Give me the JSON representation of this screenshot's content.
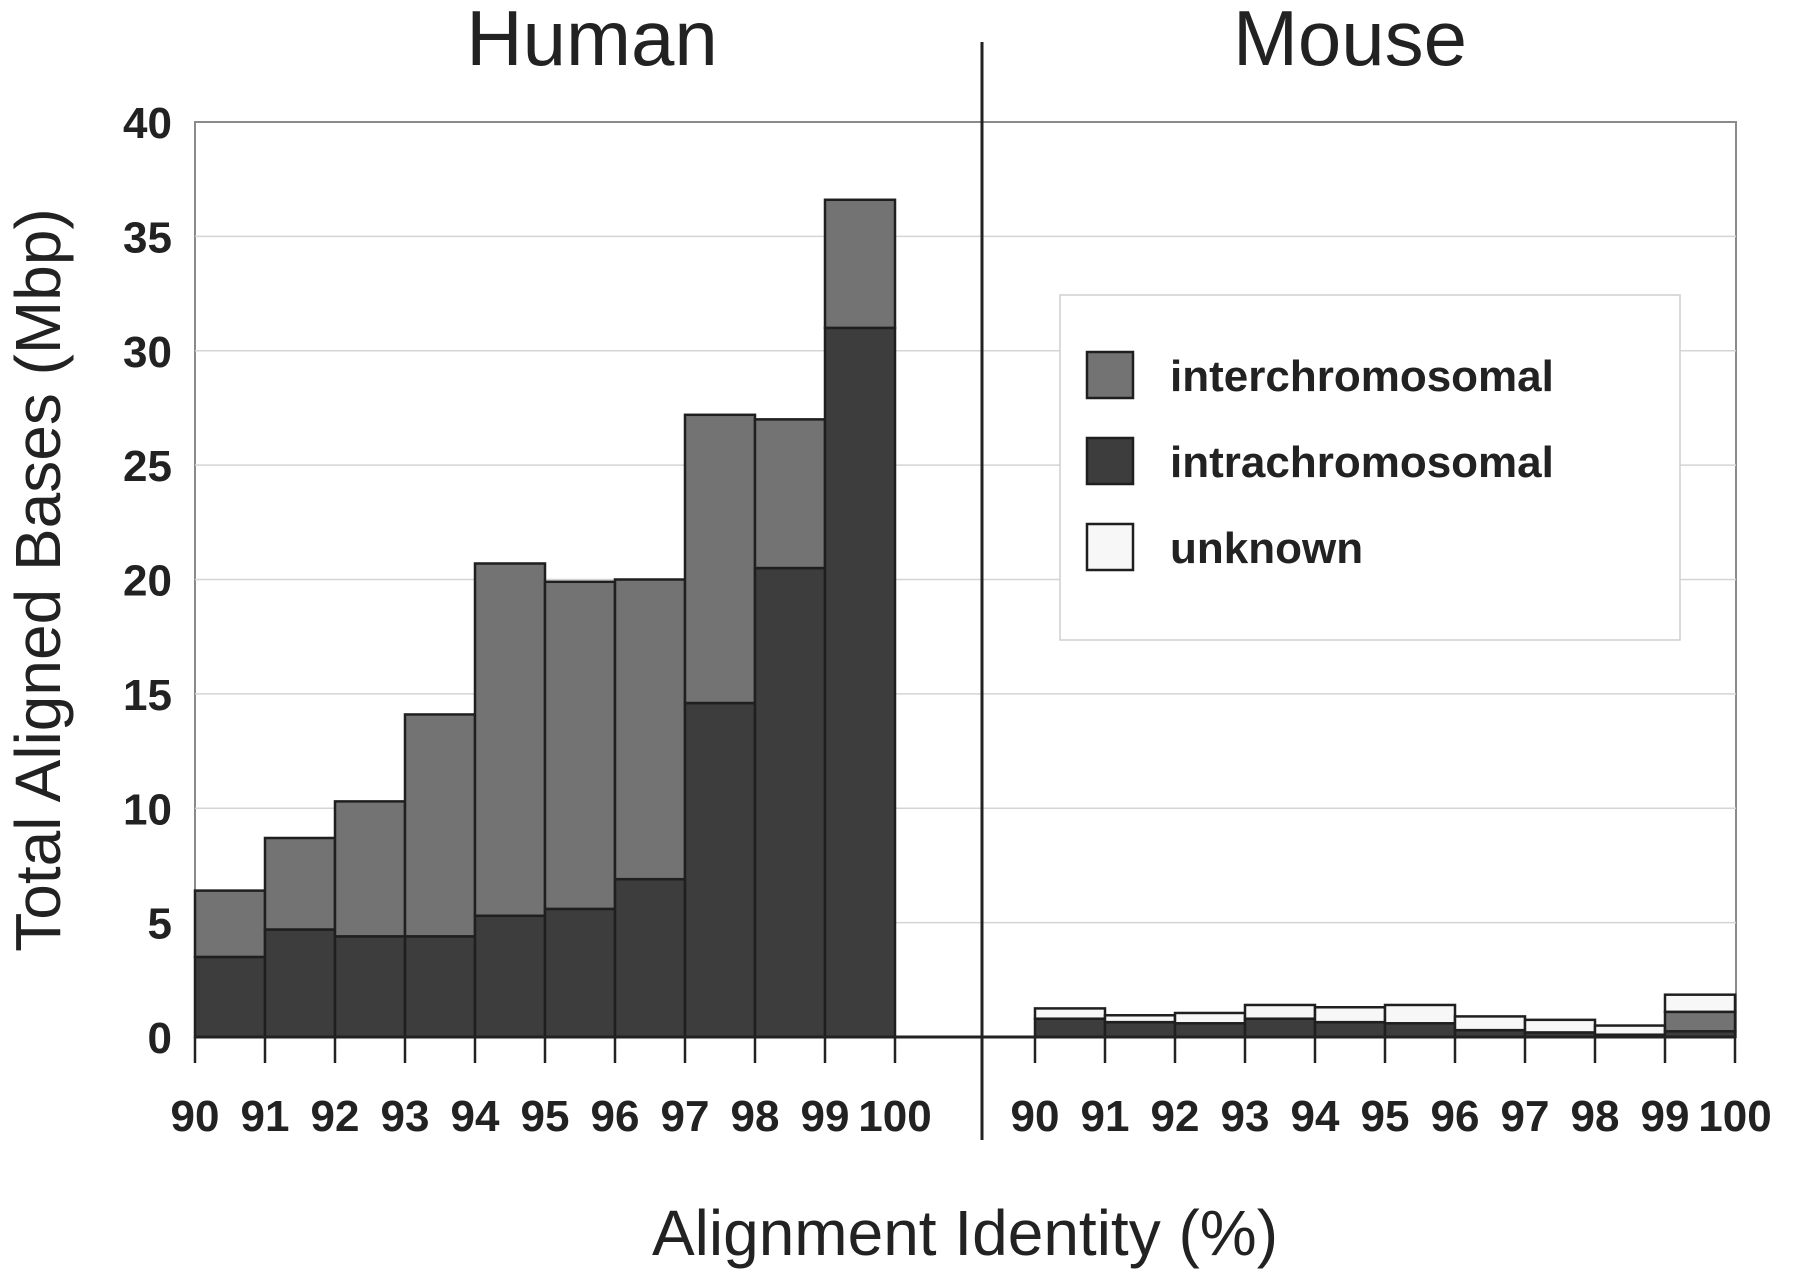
{
  "chart_data": {
    "type": "bar",
    "stacked": true,
    "ylabel": "Total Aligned Bases (Mbp)",
    "xlabel": "Alignment Identity (%)",
    "ylim": [
      0,
      40
    ],
    "y_ticks": [
      "0",
      "5",
      "10",
      "15",
      "20",
      "25",
      "30",
      "35",
      "40"
    ],
    "grid": "horizontal",
    "legend_placement": "right panel, upper middle",
    "series_colors": {
      "intrachromosomal": "#3d3d3d",
      "interchromosomal": "#737373",
      "unknown": "#f7f7f7"
    },
    "legend": [
      "interchromosomal",
      "intrachromosomal",
      "unknown"
    ],
    "panels": [
      {
        "title": "Human",
        "x_ticks": [
          "90",
          "91",
          "92",
          "93",
          "94",
          "95",
          "96",
          "97",
          "98",
          "99",
          "100"
        ],
        "bins": [
          "90-91",
          "91-92",
          "92-93",
          "93-94",
          "94-95",
          "95-96",
          "96-97",
          "97-98",
          "98-99",
          "99-100"
        ],
        "series": [
          {
            "name": "intrachromosomal",
            "values": [
              3.5,
              4.7,
              4.4,
              4.4,
              5.3,
              5.6,
              6.9,
              14.6,
              20.5,
              31.0
            ]
          },
          {
            "name": "interchromosomal",
            "values": [
              2.9,
              4.0,
              5.9,
              9.7,
              15.4,
              14.3,
              13.1,
              12.6,
              6.5,
              5.6
            ]
          },
          {
            "name": "unknown",
            "values": [
              0,
              0,
              0,
              0,
              0,
              0,
              0,
              0,
              0,
              0
            ]
          }
        ]
      },
      {
        "title": "Mouse",
        "x_ticks": [
          "90",
          "91",
          "92",
          "93",
          "94",
          "95",
          "96",
          "97",
          "98",
          "99",
          "100"
        ],
        "bins": [
          "90-91",
          "91-92",
          "92-93",
          "93-94",
          "94-95",
          "95-96",
          "96-97",
          "97-98",
          "98-99",
          "99-100"
        ],
        "series": [
          {
            "name": "intrachromosomal",
            "values": [
              0.8,
              0.65,
              0.6,
              0.8,
              0.65,
              0.6,
              0.3,
              0.2,
              0.1,
              0.25
            ]
          },
          {
            "name": "interchromosomal",
            "values": [
              0,
              0,
              0,
              0,
              0,
              0,
              0,
              0,
              0,
              0.85
            ]
          },
          {
            "name": "unknown",
            "values": [
              0.45,
              0.3,
              0.45,
              0.6,
              0.65,
              0.8,
              0.6,
              0.55,
              0.4,
              0.75
            ]
          }
        ]
      }
    ]
  }
}
